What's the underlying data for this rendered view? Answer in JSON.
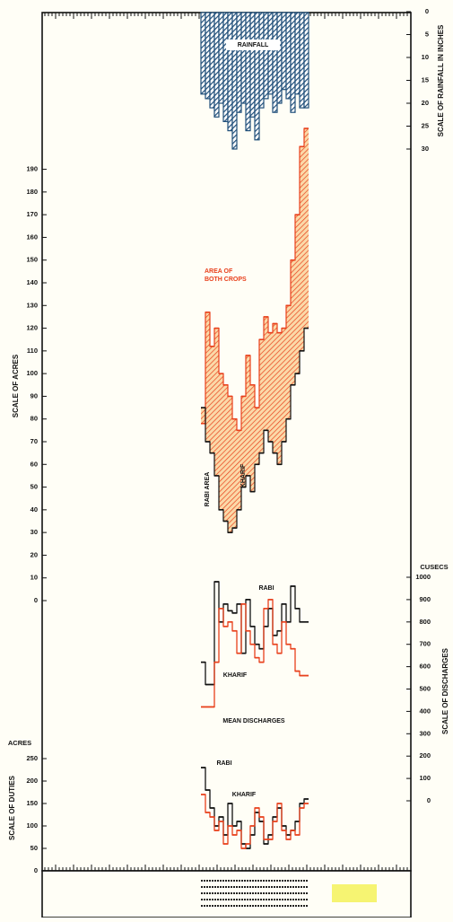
{
  "chart_data": [
    {
      "type": "bar",
      "ylabel": "SCALE OF RAINFALL IN INCHES",
      "ylim": [
        0,
        30
      ],
      "yticks": [
        0,
        5,
        10,
        15,
        20,
        25,
        30
      ],
      "series": [
        {
          "name": "RAINFALL",
          "color": "#1f4e79",
          "values": [
            18,
            19,
            21,
            23,
            20,
            24,
            26,
            30,
            22,
            20,
            26,
            23,
            28,
            21,
            19,
            18,
            22,
            20,
            17,
            19,
            22,
            18,
            21,
            21
          ]
        }
      ]
    },
    {
      "type": "area",
      "ylabel": "SCALE OF ACRES",
      "ylim": [
        0,
        210
      ],
      "yticks": [
        0,
        10,
        20,
        30,
        40,
        50,
        60,
        70,
        80,
        90,
        100,
        110,
        120,
        130,
        140,
        150,
        160,
        170,
        180,
        190
      ],
      "annotation": "KHARIF",
      "series": [
        {
          "name": "AREA OF BOTH CROPS",
          "color": "#e8401c",
          "values": [
            78,
            127,
            112,
            120,
            100,
            95,
            90,
            80,
            75,
            90,
            108,
            95,
            85,
            115,
            125,
            118,
            122,
            118,
            120,
            130,
            150,
            170,
            200,
            208
          ]
        },
        {
          "name": "RABI AREA",
          "color": "#111111",
          "values": [
            85,
            70,
            65,
            55,
            40,
            35,
            30,
            32,
            40,
            50,
            55,
            48,
            60,
            65,
            75,
            70,
            65,
            60,
            70,
            80,
            95,
            100,
            110,
            120
          ]
        }
      ]
    },
    {
      "type": "line",
      "title": "MEAN DISCHARGES",
      "ylabel": "SCALE OF DISCHARGES",
      "unit": "CUSECS",
      "ylim": [
        0,
        1000
      ],
      "yticks": [
        0,
        100,
        200,
        300,
        400,
        500,
        600,
        700,
        800,
        900,
        1000
      ],
      "series": [
        {
          "name": "RABI",
          "color": "#111111",
          "values": [
            620,
            520,
            520,
            980,
            800,
            880,
            850,
            840,
            880,
            660,
            900,
            780,
            700,
            680,
            780,
            860,
            740,
            760,
            880,
            800,
            960,
            860,
            800,
            800
          ]
        },
        {
          "name": "KHARIF",
          "color": "#e8401c",
          "values": [
            420,
            420,
            420,
            620,
            860,
            780,
            800,
            760,
            660,
            880,
            760,
            700,
            640,
            620,
            860,
            900,
            700,
            660,
            800,
            700,
            680,
            580,
            560,
            560
          ]
        }
      ]
    },
    {
      "type": "line",
      "ylabel": "SCALE OF DUTIES",
      "unit": "ACRES",
      "ylim": [
        0,
        250
      ],
      "yticks": [
        0,
        50,
        100,
        150,
        200,
        250
      ],
      "series": [
        {
          "name": "RABI",
          "color": "#111111",
          "values": [
            230,
            180,
            140,
            100,
            120,
            80,
            150,
            100,
            110,
            60,
            50,
            80,
            130,
            110,
            60,
            80,
            120,
            140,
            100,
            80,
            90,
            110,
            150,
            160
          ]
        },
        {
          "name": "KHARIF",
          "color": "#e8401c",
          "values": [
            170,
            130,
            120,
            90,
            110,
            60,
            100,
            80,
            90,
            50,
            60,
            100,
            140,
            120,
            70,
            70,
            110,
            150,
            90,
            70,
            90,
            80,
            140,
            150
          ]
        }
      ]
    }
  ]
}
